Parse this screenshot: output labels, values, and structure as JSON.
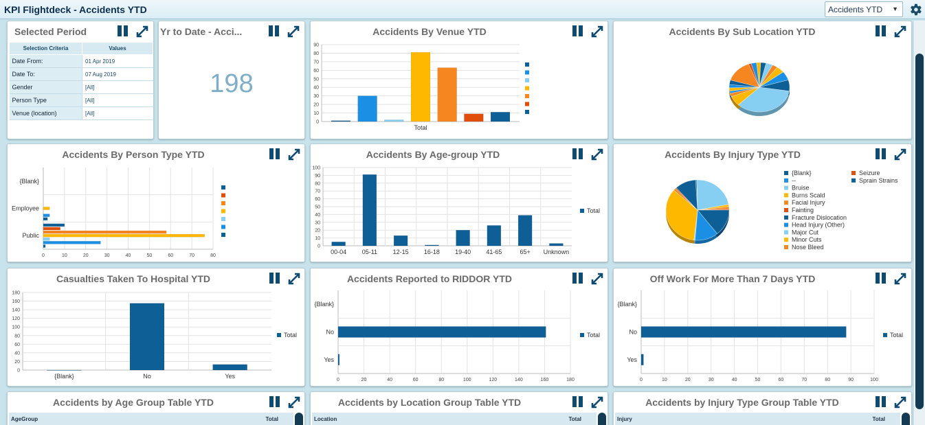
{
  "header": {
    "title": "KPI Flightdeck - Accidents YTD",
    "report_select": "Accidents YTD"
  },
  "selected_period": {
    "title": "Selected Period",
    "col_criteria": "Selection Criteria",
    "col_values": "Values",
    "rows": [
      {
        "k": "Date From:",
        "v": "01 Apr 2019"
      },
      {
        "k": "Date To:",
        "v": "07 Aug 2019"
      },
      {
        "k": "Gender",
        "v": "[All]"
      },
      {
        "k": "Person Type",
        "v": "[All]"
      },
      {
        "k": "Venue (location)",
        "v": "[All]"
      }
    ]
  },
  "ytd": {
    "title": "Yr to Date - Acci...",
    "value": "198"
  },
  "colors": {
    "dark_blue": "#0f5f97",
    "blue": "#1a8fe3",
    "light_blue": "#86cff2",
    "yellow": "#ffb800",
    "orange": "#f6861f",
    "red_orange": "#e04e0b",
    "panel_title": "#6a6a6a",
    "scroll_thumb": "#153b52"
  },
  "panel_titles": {
    "venue": "Accidents By Venue YTD",
    "sub_location": "Accidents By Sub Location YTD",
    "person_type": "Accidents By Person Type YTD",
    "age_group": "Accidents By Age-group YTD",
    "injury_type": "Accidents By Injury Type YTD",
    "hospital": "Casualties Taken To Hospital YTD",
    "riddor": "Accidents Reported to RIDDOR YTD",
    "off_work": "Off Work For More Than 7 Days YTD",
    "age_table": "Accidents by Age Group Table YTD",
    "location_table": "Accidents by Location Group Table YTD",
    "injury_table": "Accidents by Injury Type Group Table YTD"
  },
  "tables": {
    "age": {
      "col1": "AgeGroup",
      "col2": "Total"
    },
    "location": {
      "col1": "Location",
      "col2": "Total"
    },
    "injury": {
      "col1": "Injury",
      "col2": "Total"
    }
  },
  "chart_data": [
    {
      "id": "venue",
      "type": "bar",
      "categories": [
        "Total"
      ],
      "series": [
        {
          "color": "#0f5f97",
          "values": [
            1
          ]
        },
        {
          "color": "#1a8fe3",
          "values": [
            30
          ]
        },
        {
          "color": "#86cff2",
          "values": [
            2
          ]
        },
        {
          "color": "#ffb800",
          "values": [
            81
          ]
        },
        {
          "color": "#f6861f",
          "values": [
            63
          ]
        },
        {
          "color": "#e04e0b",
          "values": [
            9
          ]
        },
        {
          "color": "#0f5f97",
          "values": [
            11
          ]
        }
      ],
      "yticks": [
        "0",
        "10",
        "20",
        "30",
        "40",
        "50",
        "60",
        "70",
        "80",
        "90"
      ],
      "ylim": [
        0,
        90
      ],
      "grid": true,
      "legend": "right"
    },
    {
      "id": "sub_location",
      "type": "pie",
      "slices": [
        {
          "value": 48,
          "color": "#86cff2"
        },
        {
          "value": 9,
          "color": "#ffb800"
        },
        {
          "value": 3,
          "color": "#f6861f"
        },
        {
          "value": 2,
          "color": "#1a8fe3"
        },
        {
          "value": 3,
          "color": "#ffb800"
        },
        {
          "value": 3,
          "color": "#1a8fe3"
        },
        {
          "value": 4,
          "color": "#0f5f97"
        },
        {
          "value": 20,
          "color": "#f6861f"
        },
        {
          "value": 2,
          "color": "#e04e0b"
        },
        {
          "value": 4,
          "color": "#1a8fe3"
        },
        {
          "value": 3,
          "color": "#ffb800"
        },
        {
          "value": 4,
          "color": "#0f5f97"
        },
        {
          "value": 5,
          "color": "#86cff2"
        },
        {
          "value": 4,
          "color": "#f6861f"
        },
        {
          "value": 6,
          "color": "#ffb800"
        },
        {
          "value": 8,
          "color": "#1a8fe3"
        },
        {
          "value": 10,
          "color": "#0f5f97"
        }
      ]
    },
    {
      "id": "person_type",
      "type": "bar",
      "orientation": "horizontal",
      "categories": [
        "{Blank}",
        "Employee",
        "Public"
      ],
      "series": [
        {
          "color": "#0f5f97",
          "values": [
            0,
            0,
            10
          ]
        },
        {
          "color": "#e04e0b",
          "values": [
            0,
            0,
            8
          ]
        },
        {
          "color": "#f6861f",
          "values": [
            0,
            0,
            58
          ]
        },
        {
          "color": "#ffb800",
          "values": [
            0,
            3,
            76
          ]
        },
        {
          "color": "#86cff2",
          "values": [
            0,
            0,
            3
          ]
        },
        {
          "color": "#1a8fe3",
          "values": [
            0,
            3,
            27
          ]
        },
        {
          "color": "#0f5f97",
          "values": [
            0,
            2,
            1
          ]
        }
      ],
      "xticks": [
        "0",
        "10",
        "20",
        "30",
        "40",
        "50",
        "60",
        "70",
        "80"
      ],
      "xlim": [
        0,
        80
      ],
      "grid": true,
      "legend": "right"
    },
    {
      "id": "age_group",
      "type": "bar",
      "categories": [
        "00-04",
        "05-11",
        "12-15",
        "16-18",
        "19-40",
        "41-65",
        "65+",
        "Unknown"
      ],
      "series": [
        {
          "name": "Total",
          "color": "#0f5f97",
          "values": [
            5,
            91,
            13,
            1,
            20,
            26,
            39,
            3
          ]
        }
      ],
      "yticks": [
        "0",
        "10",
        "20",
        "30",
        "40",
        "50",
        "60",
        "70",
        "80",
        "90",
        "100"
      ],
      "ylim": [
        0,
        100
      ],
      "grid": true,
      "legend": "right"
    },
    {
      "id": "injury_type",
      "type": "pie",
      "legend": [
        "{Blank}",
        "--",
        "Bruise",
        "Burns Scald",
        "Facial Injury",
        "Fainting",
        "Fracture Dislocation",
        "Head Injury (Other)",
        "Major Cut",
        "Minor Cuts",
        "Nose Bleed",
        "Seizure",
        "Sprain Strains"
      ],
      "slices": [
        {
          "value": 1,
          "color": "#0f5f97"
        },
        {
          "value": 0.5,
          "color": "#1a8fe3"
        },
        {
          "value": 37,
          "color": "#86cff2"
        },
        {
          "value": 2,
          "color": "#ffb800"
        },
        {
          "value": 2,
          "color": "#f6861f"
        },
        {
          "value": 1,
          "color": "#e04e0b"
        },
        {
          "value": 24,
          "color": "#0f5f97"
        },
        {
          "value": 20,
          "color": "#1a8fe3"
        },
        {
          "value": 1,
          "color": "#86cff2"
        },
        {
          "value": 58,
          "color": "#ffb800"
        },
        {
          "value": 2,
          "color": "#f6861f"
        },
        {
          "value": 1,
          "color": "#e04e0b"
        },
        {
          "value": 18,
          "color": "#0f5f97"
        }
      ],
      "legend_colors": [
        "#0f5f97",
        "#1a8fe3",
        "#86cff2",
        "#ffb800",
        "#f6861f",
        "#e04e0b",
        "#0f5f97",
        "#1a8fe3",
        "#86cff2",
        "#ffb800",
        "#f6861f",
        "#e04e0b",
        "#0f5f97"
      ]
    },
    {
      "id": "hospital",
      "type": "bar",
      "categories": [
        "{Blank}",
        "No",
        "Yes"
      ],
      "series": [
        {
          "name": "Total",
          "color": "#0f5f97",
          "values": [
            0,
            155,
            13
          ]
        }
      ],
      "yticks": [
        "0",
        "20",
        "40",
        "60",
        "80",
        "100",
        "120",
        "140",
        "160",
        "180"
      ],
      "ylim": [
        0,
        180
      ],
      "grid": true,
      "legend": "right"
    },
    {
      "id": "riddor",
      "type": "bar",
      "orientation": "horizontal",
      "categories": [
        "{Blank}",
        "No",
        "Yes"
      ],
      "series": [
        {
          "name": "Total",
          "color": "#0f5f97",
          "values": [
            0,
            161,
            1
          ]
        }
      ],
      "xticks": [
        "0",
        "20",
        "40",
        "60",
        "80",
        "100",
        "120",
        "140",
        "160",
        "180"
      ],
      "xlim": [
        0,
        180
      ],
      "grid": true,
      "legend": "right"
    },
    {
      "id": "off_work",
      "type": "bar",
      "orientation": "horizontal",
      "categories": [
        "{Blank}",
        "No",
        "Yes"
      ],
      "series": [
        {
          "name": "Total",
          "color": "#0f5f97",
          "values": [
            0,
            88,
            1
          ]
        }
      ],
      "xticks": [
        "0",
        "10",
        "20",
        "30",
        "40",
        "50",
        "60",
        "70",
        "80",
        "90",
        "100"
      ],
      "xlim": [
        0,
        100
      ],
      "grid": true,
      "legend": "right"
    }
  ]
}
